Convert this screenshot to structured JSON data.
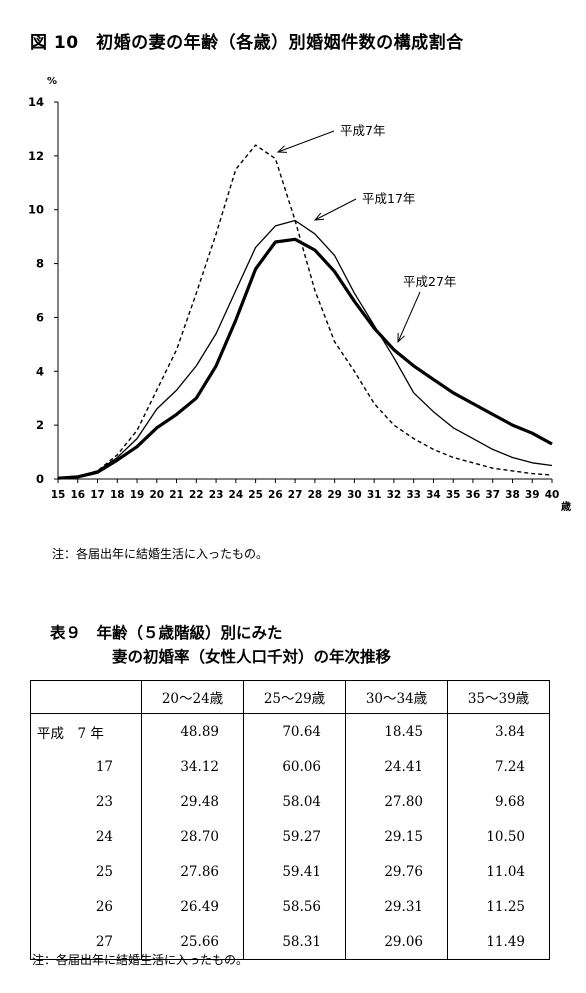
{
  "figure": {
    "title": "図 10　初婚の妻の年齢（各歳）別婚姻件数の構成割合",
    "note": "注：各届出年に結婚生活に入ったもの。"
  },
  "chart_data": {
    "type": "line",
    "ylabel": "%",
    "xlabel": "歳",
    "ylim": [
      0,
      14
    ],
    "yticks": [
      0,
      2,
      4,
      6,
      8,
      10,
      12,
      14
    ],
    "x": [
      15,
      16,
      17,
      18,
      19,
      20,
      21,
      22,
      23,
      24,
      25,
      26,
      27,
      28,
      29,
      30,
      31,
      32,
      33,
      34,
      35,
      36,
      37,
      38,
      39,
      40
    ],
    "series": [
      {
        "name": "平成7年",
        "style": "dashed",
        "values": [
          0.05,
          0.1,
          0.3,
          0.9,
          1.8,
          3.3,
          4.8,
          6.9,
          9.1,
          11.5,
          12.4,
          11.9,
          9.6,
          7.0,
          5.1,
          4.0,
          2.8,
          2.0,
          1.5,
          1.1,
          0.8,
          0.6,
          0.4,
          0.3,
          0.2,
          0.15
        ]
      },
      {
        "name": "平成17年",
        "style": "thin",
        "values": [
          0.05,
          0.1,
          0.3,
          0.8,
          1.5,
          2.6,
          3.3,
          4.2,
          5.4,
          7.0,
          8.6,
          9.4,
          9.6,
          9.1,
          8.3,
          6.9,
          5.7,
          4.5,
          3.2,
          2.5,
          1.9,
          1.5,
          1.1,
          0.8,
          0.6,
          0.5
        ]
      },
      {
        "name": "平成27年",
        "style": "thick",
        "values": [
          0.03,
          0.08,
          0.25,
          0.7,
          1.2,
          1.9,
          2.4,
          3.0,
          4.2,
          5.9,
          7.8,
          8.8,
          8.9,
          8.5,
          7.7,
          6.6,
          5.6,
          4.8,
          4.2,
          3.7,
          3.2,
          2.8,
          2.4,
          2.0,
          1.7,
          1.3
        ]
      }
    ],
    "annotations": [
      "平成7年",
      "平成17年",
      "平成27年"
    ]
  },
  "table": {
    "title_line1": "表９　年齢（５歳階級）別にみた",
    "title_line2": "妻の初婚率（女性人口千対）の年次推移",
    "headers": [
      "",
      "20～24歳",
      "25～29歳",
      "30～34歳",
      "35～39歳"
    ],
    "rows": [
      {
        "year": "平成　7 年",
        "values": [
          "48.89",
          "70.64",
          "18.45",
          "3.84"
        ]
      },
      {
        "year": "17",
        "values": [
          "34.12",
          "60.06",
          "24.41",
          "7.24"
        ]
      },
      {
        "year": "23",
        "values": [
          "29.48",
          "58.04",
          "27.80",
          "9.68"
        ]
      },
      {
        "year": "24",
        "values": [
          "28.70",
          "59.27",
          "29.15",
          "10.50"
        ]
      },
      {
        "year": "25",
        "values": [
          "27.86",
          "59.41",
          "29.76",
          "11.04"
        ]
      },
      {
        "year": "26",
        "values": [
          "26.49",
          "58.56",
          "29.31",
          "11.25"
        ]
      },
      {
        "year": "27",
        "values": [
          "25.66",
          "58.31",
          "29.06",
          "11.49"
        ]
      }
    ],
    "note": "注：各届出年に結婚生活に入ったもの。"
  }
}
